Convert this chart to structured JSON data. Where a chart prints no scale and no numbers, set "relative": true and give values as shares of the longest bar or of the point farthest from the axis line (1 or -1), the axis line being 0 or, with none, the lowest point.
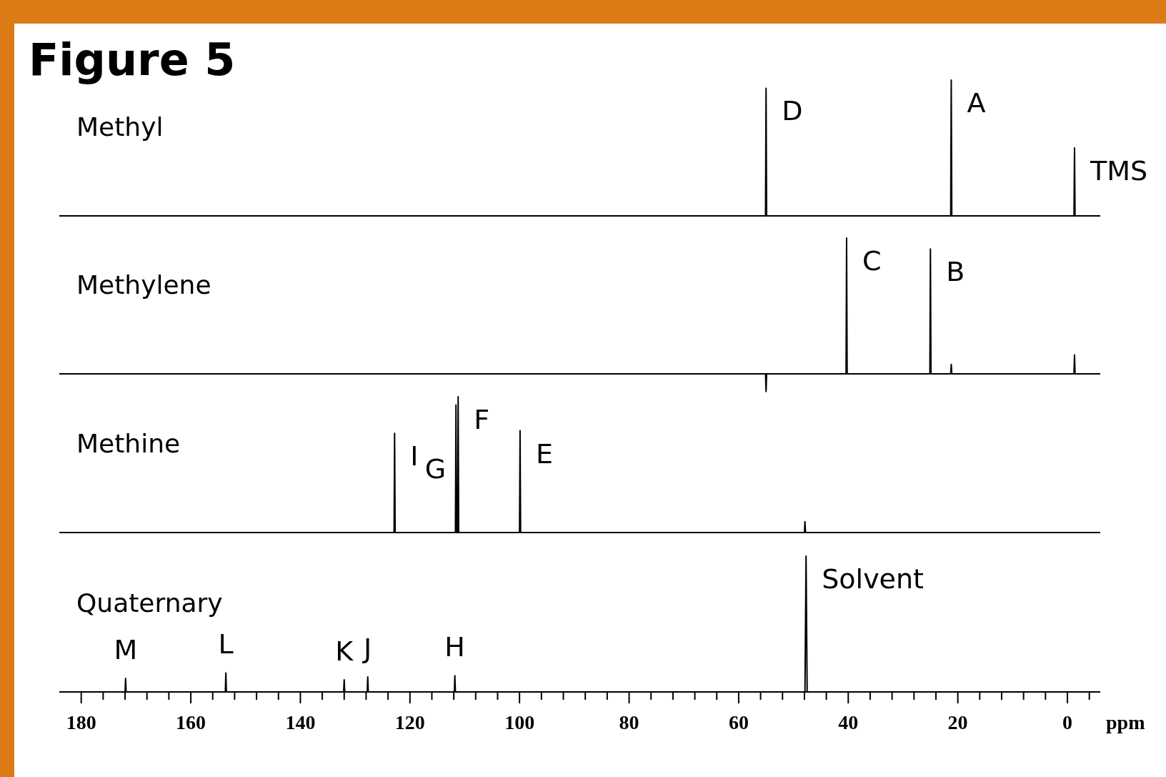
{
  "chart_data": [
    {
      "type": "line",
      "title": "Figure 5",
      "relative": true,
      "xlim": [
        184,
        -6
      ],
      "tick_labels": false,
      "series": [
        {
          "name": "Methyl",
          "color": "#000000",
          "x": [
            184,
            55.1,
            55,
            54.9,
            21.3,
            21.2,
            21.1,
            -1.2,
            -1.3,
            -1.4,
            -6
          ],
          "values": [
            0,
            0,
            0.94,
            0,
            0,
            1,
            0,
            0,
            0.5,
            0,
            0
          ]
        }
      ],
      "annotations": [
        {
          "text": "D",
          "x": 55,
          "y": 0.94
        },
        {
          "text": "A",
          "x": 21.2,
          "y": 1
        },
        {
          "text": "TMS",
          "x": -1.3,
          "y": 0.5
        }
      ]
    },
    {
      "type": "line",
      "relative": true,
      "xlim": [
        184,
        -6
      ],
      "tick_labels": false,
      "series": [
        {
          "name": "Methylene",
          "color": "#000000",
          "x": [
            184,
            55.1,
            55,
            54.9,
            40.4,
            40.3,
            40.2,
            25.1,
            25,
            24.9,
            21.3,
            21.2,
            21.1,
            -1.2,
            -1.3,
            -1.4,
            -6
          ],
          "values": [
            0,
            0,
            -0.13,
            0,
            0,
            1,
            0,
            0,
            0.92,
            0,
            0,
            0.07,
            0,
            0,
            0.14,
            0,
            0
          ]
        }
      ],
      "annotations": [
        {
          "text": "C",
          "x": 40.3,
          "y": 1
        },
        {
          "text": "B",
          "x": 25,
          "y": 0.92
        }
      ]
    },
    {
      "type": "line",
      "relative": true,
      "xlim": [
        184,
        -6
      ],
      "tick_labels": false,
      "series": [
        {
          "name": "Methine",
          "color": "#000000",
          "x": [
            184,
            122.9,
            122.8,
            122.7,
            111.7,
            111.6,
            111.5,
            111.3,
            111.2,
            111.1,
            100,
            99.9,
            99.8,
            48,
            47.9,
            47.8,
            -6
          ],
          "values": [
            0,
            0,
            0.73,
            0,
            0,
            0.94,
            0,
            0,
            1,
            0,
            0,
            0.75,
            0,
            0,
            0.08,
            0,
            0
          ]
        }
      ],
      "annotations": [
        {
          "text": "I",
          "x": 122.8,
          "y": 0.73
        },
        {
          "text": "F",
          "x": 111.2,
          "y": 1
        },
        {
          "text": "G",
          "x": 111.6,
          "y": 0.94
        },
        {
          "text": "E",
          "x": 99.9,
          "y": 0.75
        }
      ]
    },
    {
      "type": "line",
      "relative": true,
      "xlim": [
        184,
        -6
      ],
      "tick_labels": "x",
      "xlabel": "ppm",
      "xticks": [
        180,
        160,
        140,
        120,
        100,
        80,
        60,
        40,
        20,
        0,
        {
          "value": 176,
          "label": null
        },
        {
          "value": 172,
          "label": null
        },
        {
          "value": 168,
          "label": null
        },
        {
          "value": 164,
          "label": null
        },
        {
          "value": 156,
          "label": null
        },
        {
          "value": 152,
          "label": null
        },
        {
          "value": 148,
          "label": null
        },
        {
          "value": 144,
          "label": null
        },
        {
          "value": 136,
          "label": null
        },
        {
          "value": 132,
          "label": null
        },
        {
          "value": 128,
          "label": null
        },
        {
          "value": 124,
          "label": null
        },
        {
          "value": 116,
          "label": null
        },
        {
          "value": 112,
          "label": null
        },
        {
          "value": 108,
          "label": null
        },
        {
          "value": 104,
          "label": null
        },
        {
          "value": 96,
          "label": null
        },
        {
          "value": 92,
          "label": null
        },
        {
          "value": 88,
          "label": null
        },
        {
          "value": 84,
          "label": null
        },
        {
          "value": 76,
          "label": null
        },
        {
          "value": 72,
          "label": null
        },
        {
          "value": 68,
          "label": null
        },
        {
          "value": 64,
          "label": null
        },
        {
          "value": 56,
          "label": null
        },
        {
          "value": 52,
          "label": null
        },
        {
          "value": 48,
          "label": null
        },
        {
          "value": 44,
          "label": null
        },
        {
          "value": 36,
          "label": null
        },
        {
          "value": 32,
          "label": null
        },
        {
          "value": 28,
          "label": null
        },
        {
          "value": 24,
          "label": null
        },
        {
          "value": 16,
          "label": null
        },
        {
          "value": 12,
          "label": null
        },
        {
          "value": 8,
          "label": null
        },
        {
          "value": 4,
          "label": null
        },
        {
          "value": -4,
          "label": null
        }
      ],
      "series": [
        {
          "name": "Quaternary",
          "color": "#000000",
          "x": [
            184,
            172,
            171.9,
            171.8,
            153.7,
            153.6,
            153.5,
            132.1,
            132,
            131.9,
            127.8,
            127.7,
            127.6,
            111.9,
            111.8,
            111.7,
            47.9,
            47.7,
            47.5,
            -6
          ],
          "values": [
            0,
            0,
            0.1,
            0,
            0,
            0.14,
            0,
            0,
            0.09,
            0,
            0,
            0.11,
            0,
            0,
            0.12,
            0,
            0,
            1,
            0,
            0
          ]
        }
      ],
      "annotations": [
        {
          "text": "M",
          "x": 171.9,
          "y": 0.1
        },
        {
          "text": "L",
          "x": 153.6,
          "y": 0.14
        },
        {
          "text": "K",
          "x": 132,
          "y": 0.09
        },
        {
          "text": "J",
          "x": 127.7,
          "y": 0.11
        },
        {
          "text": "H",
          "x": 111.8,
          "y": 0.12
        },
        {
          "text": "Solvent",
          "x": 47.7,
          "y": 1
        }
      ]
    }
  ]
}
